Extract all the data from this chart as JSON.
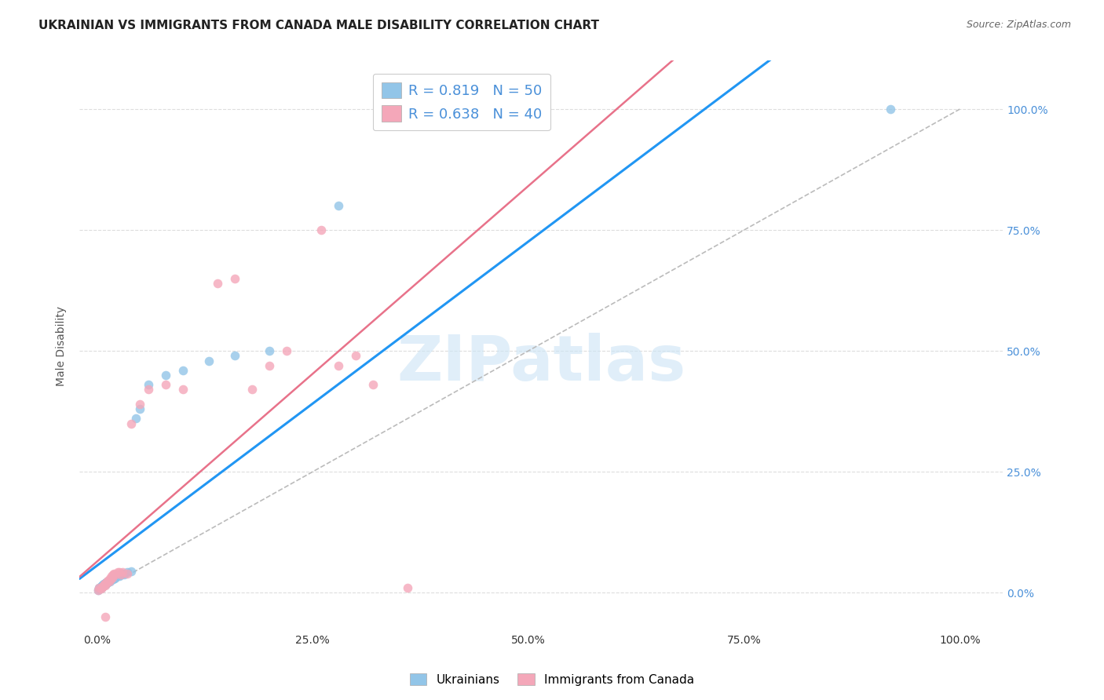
{
  "title": "UKRAINIAN VS IMMIGRANTS FROM CANADA MALE DISABILITY CORRELATION CHART",
  "source": "Source: ZipAtlas.com",
  "ylabel": "Male Disability",
  "xlabel": "",
  "watermark": "ZIPatlas",
  "blue_label": "Ukrainians",
  "pink_label": "Immigrants from Canada",
  "blue_R": 0.819,
  "blue_N": 50,
  "pink_R": 0.638,
  "pink_N": 40,
  "blue_color": "#92c5e8",
  "pink_color": "#f4a7b9",
  "blue_line_color": "#2196f3",
  "pink_line_color": "#e8728a",
  "diag_color": "#bbbbbb",
  "background_color": "#ffffff",
  "grid_color": "#dddddd",
  "title_fontsize": 11,
  "marker_size": 70,
  "blue_x": [
    0.002,
    0.003,
    0.003,
    0.004,
    0.005,
    0.005,
    0.006,
    0.006,
    0.007,
    0.007,
    0.008,
    0.008,
    0.009,
    0.009,
    0.01,
    0.01,
    0.011,
    0.011,
    0.012,
    0.012,
    0.013,
    0.013,
    0.014,
    0.015,
    0.015,
    0.016,
    0.017,
    0.018,
    0.019,
    0.02,
    0.021,
    0.022,
    0.023,
    0.025,
    0.026,
    0.028,
    0.03,
    0.032,
    0.035,
    0.04,
    0.045,
    0.05,
    0.06,
    0.08,
    0.1,
    0.13,
    0.16,
    0.2,
    0.28,
    0.92
  ],
  "blue_y": [
    0.005,
    0.008,
    0.01,
    0.012,
    0.01,
    0.013,
    0.012,
    0.015,
    0.014,
    0.016,
    0.015,
    0.018,
    0.016,
    0.018,
    0.018,
    0.02,
    0.019,
    0.021,
    0.02,
    0.022,
    0.022,
    0.024,
    0.025,
    0.024,
    0.027,
    0.026,
    0.028,
    0.03,
    0.028,
    0.032,
    0.03,
    0.033,
    0.035,
    0.037,
    0.035,
    0.038,
    0.04,
    0.038,
    0.042,
    0.045,
    0.36,
    0.38,
    0.43,
    0.45,
    0.46,
    0.48,
    0.49,
    0.5,
    0.8,
    1.0
  ],
  "pink_x": [
    0.002,
    0.003,
    0.005,
    0.006,
    0.007,
    0.008,
    0.009,
    0.01,
    0.011,
    0.012,
    0.013,
    0.014,
    0.015,
    0.016,
    0.017,
    0.018,
    0.019,
    0.02,
    0.022,
    0.024,
    0.026,
    0.028,
    0.03,
    0.035,
    0.04,
    0.05,
    0.06,
    0.08,
    0.1,
    0.14,
    0.16,
    0.18,
    0.2,
    0.22,
    0.26,
    0.28,
    0.3,
    0.32,
    0.36,
    0.01
  ],
  "pink_y": [
    0.005,
    0.01,
    0.008,
    0.012,
    0.014,
    0.015,
    0.018,
    0.015,
    0.02,
    0.022,
    0.025,
    0.023,
    0.03,
    0.028,
    0.035,
    0.032,
    0.038,
    0.04,
    0.038,
    0.042,
    0.042,
    0.038,
    0.043,
    0.04,
    0.35,
    0.39,
    0.42,
    0.43,
    0.42,
    0.64,
    0.65,
    0.42,
    0.47,
    0.5,
    0.75,
    0.47,
    0.49,
    0.43,
    0.01,
    -0.05
  ],
  "xticks": [
    0.0,
    0.25,
    0.5,
    0.75,
    1.0
  ],
  "yticks": [
    0.0,
    0.25,
    0.5,
    0.75,
    1.0
  ],
  "xlim": [
    -0.02,
    1.05
  ],
  "ylim": [
    -0.08,
    1.1
  ]
}
